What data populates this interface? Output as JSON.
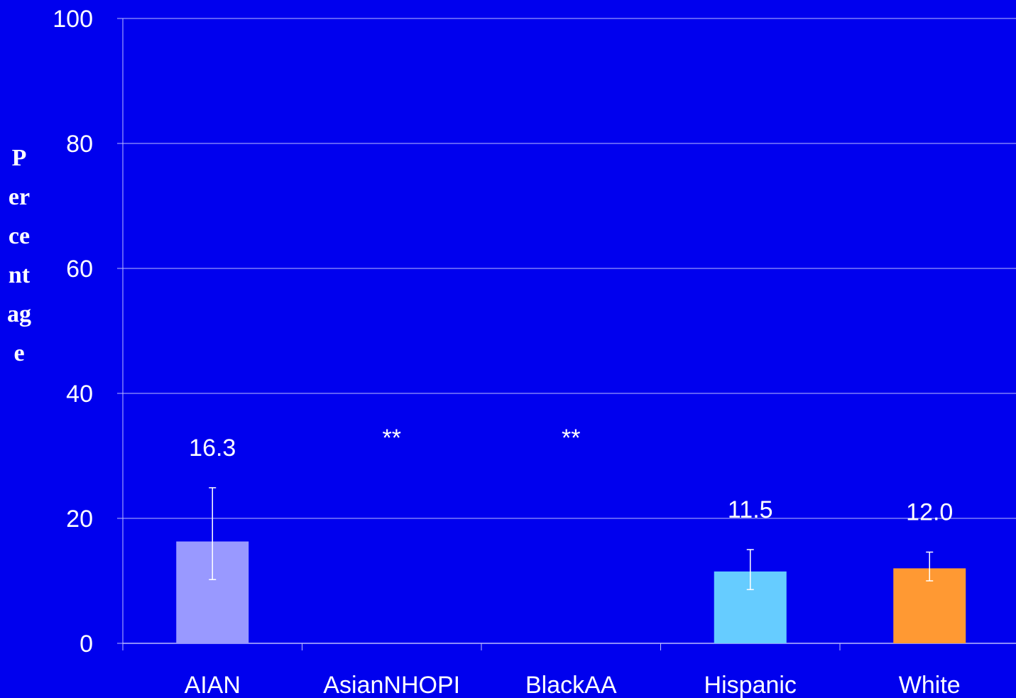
{
  "chart_data": {
    "type": "bar",
    "title": "",
    "xlabel": "",
    "ylabel": "Percentage",
    "ylim": [
      0,
      100
    ],
    "yticks": [
      "0",
      "20",
      "40",
      "60",
      "80",
      "100"
    ],
    "grid": true,
    "categories": [
      "AIAN",
      "AsianNHOPI",
      "BlackAA",
      "Hispanic",
      "White"
    ],
    "values": [
      16.3,
      null,
      null,
      11.5,
      12.0
    ],
    "error_low": [
      10.2,
      null,
      null,
      8.6,
      10.0
    ],
    "error_high": [
      24.9,
      null,
      null,
      15.0,
      14.6
    ],
    "data_labels": [
      "16.3",
      "**",
      "**",
      "11.5",
      "12.0"
    ],
    "colors": [
      "#9999ff",
      null,
      null,
      "#66ccff",
      "#ff9933"
    ]
  },
  "colors": {
    "background": "#0000ee",
    "grid": "#bbbbff",
    "text": "#ffffff",
    "errorbar": "#ffffff"
  }
}
